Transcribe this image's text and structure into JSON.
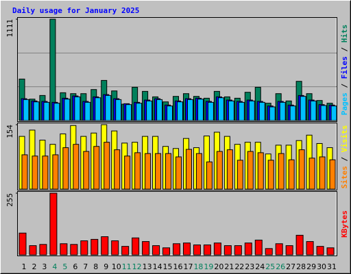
{
  "title": "Daily usage for January 2025",
  "title_color": "#0000ff",
  "legend_separator": " / ",
  "categories": [
    "1",
    "2",
    "3",
    "4",
    "5",
    "6",
    "7",
    "8",
    "9",
    "10",
    "11",
    "12",
    "13",
    "14",
    "15",
    "16",
    "17",
    "18",
    "19",
    "20",
    "21",
    "22",
    "23",
    "24",
    "25",
    "26",
    "27",
    "28",
    "29",
    "30",
    "31"
  ],
  "category_colors": [
    "#000000",
    "#000000",
    "#000000",
    "#00805c",
    "#00805c",
    "#000000",
    "#000000",
    "#000000",
    "#000000",
    "#000000",
    "#00805c",
    "#00805c",
    "#000000",
    "#000000",
    "#000000",
    "#000000",
    "#000000",
    "#00805c",
    "#00805c",
    "#000000",
    "#000000",
    "#000000",
    "#000000",
    "#000000",
    "#00805c",
    "#00805c",
    "#000000",
    "#000000",
    "#000000",
    "#000000",
    "#000000"
  ],
  "chart_data": [
    {
      "type": "bar",
      "ylim": [
        0,
        1111
      ],
      "yticks": [
        1111
      ],
      "series": [
        {
          "name": "Hits",
          "color": "#00805c",
          "values": [
            455,
            235,
            275,
            1111,
            305,
            295,
            295,
            340,
            440,
            325,
            180,
            365,
            320,
            260,
            205,
            265,
            295,
            265,
            245,
            320,
            260,
            245,
            310,
            365,
            190,
            295,
            215,
            430,
            295,
            220,
            190
          ]
        },
        {
          "name": "Files",
          "color": "#0000ff",
          "values": [
            240,
            215,
            210,
            200,
            245,
            270,
            210,
            260,
            285,
            240,
            185,
            200,
            225,
            240,
            170,
            215,
            240,
            245,
            210,
            260,
            225,
            210,
            225,
            210,
            160,
            210,
            170,
            275,
            225,
            175,
            170
          ]
        },
        {
          "name": "Pages",
          "color": "#00c0ff",
          "values": [
            230,
            205,
            200,
            190,
            235,
            260,
            200,
            250,
            275,
            230,
            175,
            190,
            215,
            230,
            160,
            205,
            230,
            235,
            200,
            250,
            215,
            200,
            215,
            200,
            150,
            200,
            160,
            265,
            215,
            165,
            160
          ]
        }
      ]
    },
    {
      "type": "bar",
      "ylim": [
        0,
        154
      ],
      "yticks": [
        154
      ],
      "series": [
        {
          "name": "Visits",
          "color": "#ffff00",
          "values": [
            126,
            141,
            117,
            107,
            132,
            152,
            126,
            134,
            154,
            139,
            110,
            112,
            126,
            126,
            102,
            97,
            121,
            99,
            127,
            136,
            126,
            107,
            112,
            112,
            84,
            105,
            105,
            116,
            129,
            109,
            99
          ]
        },
        {
          "name": "Sites",
          "color": "#ff8000",
          "values": [
            82,
            79,
            79,
            82,
            99,
            107,
            90,
            102,
            112,
            94,
            79,
            87,
            85,
            85,
            85,
            77,
            95,
            85,
            65,
            90,
            94,
            69,
            90,
            87,
            69,
            85,
            70,
            94,
            74,
            77,
            70
          ]
        }
      ]
    },
    {
      "type": "bar",
      "ylim": [
        0,
        255
      ],
      "yticks": [
        255
      ],
      "series": [
        {
          "name": "KBytes",
          "color": "#ff0000",
          "values": [
            90,
            38,
            43,
            255,
            46,
            43,
            58,
            64,
            75,
            58,
            35,
            70,
            55,
            38,
            29,
            46,
            49,
            41,
            41,
            49,
            38,
            38,
            49,
            61,
            26,
            46,
            38,
            81,
            55,
            35,
            29
          ]
        }
      ]
    }
  ]
}
